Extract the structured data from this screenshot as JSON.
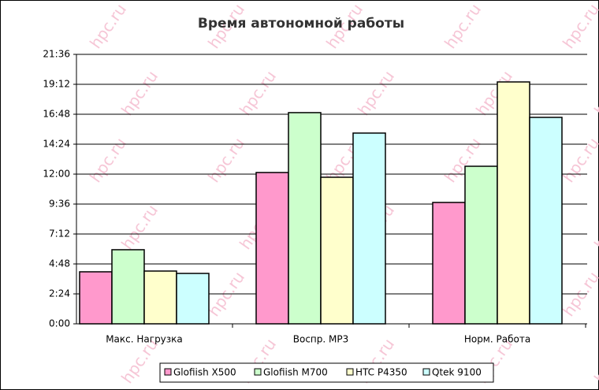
{
  "chart_data": {
    "type": "bar",
    "title": "Время автономной работы",
    "watermark": "hpc.ru",
    "categories": [
      "Макс. Нагрузка",
      "Воспр. MP3",
      "Норм. Работа"
    ],
    "series": [
      {
        "name": "Glofiish X500",
        "color": "#ff99cc",
        "values": [
          4.17,
          12.13,
          9.73
        ]
      },
      {
        "name": "Glofiish M700",
        "color": "#ccffcc",
        "values": [
          5.94,
          16.93,
          12.63
        ]
      },
      {
        "name": "HTC P4350",
        "color": "#ffffcc",
        "values": [
          4.23,
          11.75,
          19.39
        ]
      },
      {
        "name": "Qtek 9100",
        "color": "#ccffff",
        "values": [
          4.04,
          15.29,
          16.55
        ]
      }
    ],
    "ylim": [
      0,
      21.6
    ],
    "yticks": [
      {
        "value": 0,
        "label": "0:00"
      },
      {
        "value": 2.4,
        "label": "2:24"
      },
      {
        "value": 4.8,
        "label": "4:48"
      },
      {
        "value": 7.2,
        "label": "7:12"
      },
      {
        "value": 9.6,
        "label": "9:36"
      },
      {
        "value": 12,
        "label": "12:00"
      },
      {
        "value": 14.4,
        "label": "14:24"
      },
      {
        "value": 16.8,
        "label": "16:48"
      },
      {
        "value": 19.2,
        "label": "19:12"
      },
      {
        "value": 21.6,
        "label": "21:36"
      }
    ],
    "grid": true,
    "legend": "bottom"
  }
}
